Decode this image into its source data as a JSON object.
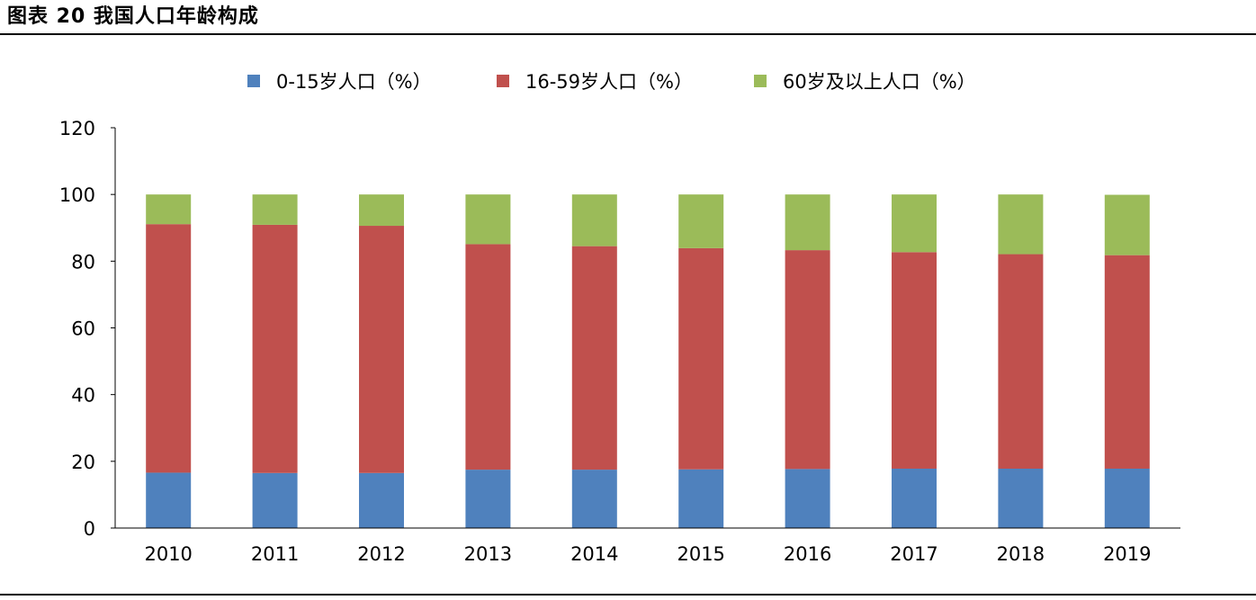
{
  "figure": {
    "title": "图表 20 我国人口年龄构成"
  },
  "chart_data": {
    "type": "bar",
    "stacked": true,
    "categories": [
      "2010",
      "2011",
      "2012",
      "2013",
      "2014",
      "2015",
      "2016",
      "2017",
      "2018",
      "2019"
    ],
    "series": [
      {
        "name": "0-15岁人口（%）",
        "color": "#4F81BD",
        "values": [
          16.6,
          16.5,
          16.5,
          17.5,
          17.5,
          17.6,
          17.7,
          17.8,
          17.8,
          17.8
        ]
      },
      {
        "name": "16-59岁人口（%）",
        "color": "#C0504D",
        "values": [
          74.5,
          74.4,
          74.1,
          67.6,
          67.0,
          66.3,
          65.6,
          64.9,
          64.3,
          64.0
        ]
      },
      {
        "name": "60岁及以上人口（%）",
        "color": "#9BBB59",
        "values": [
          8.9,
          9.1,
          9.4,
          14.9,
          15.5,
          16.1,
          16.7,
          17.3,
          17.9,
          18.1
        ]
      }
    ],
    "yticks": [
      "0",
      "20",
      "40",
      "60",
      "80",
      "100",
      "120"
    ],
    "ylim": [
      0,
      120
    ],
    "xlabel": "",
    "ylabel": "",
    "grid": false,
    "legend": "top-center"
  }
}
